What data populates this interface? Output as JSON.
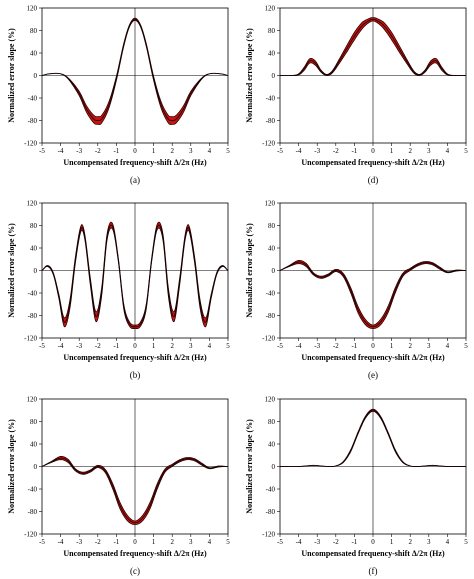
{
  "chart_data": [
    {
      "panel_label": "(a)",
      "type": "line",
      "xlabel": "Uncompensated frequency-shift Δ/2π (Hz)",
      "ylabel": "Normalized error slope (%)",
      "xlim": [
        -5,
        5
      ],
      "ylim": [
        -120,
        120
      ],
      "xticks": [
        "-5",
        "-4",
        "-3",
        "-2",
        "-1",
        "0",
        "1",
        "2",
        "3",
        "4",
        "5"
      ],
      "yticks": [
        "120",
        "80",
        "40",
        "0",
        "-40",
        "-80",
        "-120"
      ],
      "series": [
        {
          "x": [
            -5,
            -4.6,
            -4,
            -3.6,
            -3,
            -2.6,
            -2.2,
            -2,
            -1.8,
            -1.4,
            -1,
            -0.6,
            -0.3,
            0,
            0.3,
            0.6,
            1,
            1.4,
            1.8,
            2,
            2.2,
            2.6,
            3,
            3.6,
            4,
            4.6,
            5
          ],
          "y": [
            0,
            3,
            3,
            -5,
            -32,
            -60,
            -78,
            -80,
            -78,
            -52,
            -5,
            55,
            88,
            100,
            88,
            55,
            -5,
            -52,
            -78,
            -80,
            -78,
            -60,
            -32,
            -5,
            3,
            3,
            0
          ]
        }
      ],
      "band_width": [
        0,
        0,
        0,
        1,
        4,
        6,
        7,
        7,
        7,
        6,
        4,
        3,
        2,
        2,
        2,
        3,
        4,
        6,
        7,
        7,
        7,
        6,
        4,
        1,
        0,
        0,
        0
      ]
    },
    {
      "panel_label": "(d)",
      "type": "line",
      "xlabel": "Uncompensated frequency-shift Δ/2π (Hz)",
      "ylabel": "Normalized error slope (%)",
      "xlim": [
        -5,
        5
      ],
      "ylim": [
        -120,
        120
      ],
      "xticks": [
        "-5",
        "-4",
        "-3",
        "-2",
        "-1",
        "0",
        "1",
        "2",
        "3",
        "4",
        "5"
      ],
      "yticks": [
        "120",
        "80",
        "40",
        "0",
        "-40",
        "-80",
        "-120"
      ],
      "series": [
        {
          "x": [
            -5,
            -4.4,
            -4,
            -3.7,
            -3.4,
            -3.1,
            -2.8,
            -2.5,
            -2.2,
            -1.8,
            -1.4,
            -1,
            -0.6,
            -0.3,
            0,
            0.3,
            0.6,
            1,
            1.4,
            1.8,
            2.2,
            2.5,
            2.8,
            3.1,
            3.4,
            3.7,
            4,
            4.4,
            5
          ],
          "y": [
            0,
            0,
            2,
            12,
            26,
            22,
            8,
            1,
            6,
            26,
            48,
            70,
            88,
            96,
            100,
            96,
            88,
            70,
            48,
            26,
            6,
            1,
            8,
            22,
            26,
            12,
            2,
            0,
            0
          ]
        }
      ],
      "band_width": [
        0,
        0,
        1,
        3,
        4,
        4,
        2,
        1,
        2,
        4,
        6,
        7,
        6,
        4,
        3,
        4,
        6,
        7,
        6,
        4,
        2,
        1,
        2,
        4,
        4,
        3,
        1,
        0,
        0
      ]
    },
    {
      "panel_label": "(b)",
      "type": "line",
      "xlabel": "Uncompensated frequency-shift Δ/2π (Hz)",
      "ylabel": "Normalized error slope (%)",
      "xlim": [
        -5,
        5
      ],
      "ylim": [
        -120,
        120
      ],
      "xticks": [
        "-5",
        "-4",
        "-3",
        "-2",
        "-1",
        "0",
        "1",
        "2",
        "3",
        "4",
        "5"
      ],
      "yticks": [
        "120",
        "80",
        "40",
        "0",
        "-40",
        "-80",
        "-120"
      ],
      "series": [
        {
          "x": [
            -5,
            -4.7,
            -4.4,
            -4.1,
            -3.8,
            -3.5,
            -3.2,
            -2.9,
            -2.7,
            -2.4,
            -2.1,
            -1.8,
            -1.5,
            -1.2,
            -0.9,
            -0.6,
            -0.3,
            0,
            0.3,
            0.6,
            0.9,
            1.2,
            1.5,
            1.8,
            2.1,
            2.4,
            2.7,
            2.9,
            3.2,
            3.5,
            3.8,
            4.1,
            4.4,
            4.7,
            5
          ],
          "y": [
            0,
            8,
            -5,
            -45,
            -92,
            -60,
            20,
            75,
            60,
            -20,
            -82,
            -40,
            60,
            78,
            20,
            -65,
            -95,
            -100,
            -95,
            -65,
            20,
            78,
            60,
            -40,
            -82,
            -20,
            60,
            75,
            20,
            -60,
            -92,
            -45,
            -5,
            8,
            0
          ]
        }
      ],
      "band_width": [
        0,
        1,
        2,
        4,
        8,
        8,
        6,
        5,
        5,
        7,
        9,
        8,
        6,
        5,
        4,
        5,
        4,
        3,
        4,
        5,
        4,
        5,
        6,
        8,
        9,
        7,
        5,
        5,
        6,
        8,
        8,
        4,
        2,
        1,
        0
      ]
    },
    {
      "panel_label": "(e)",
      "type": "line",
      "xlabel": "Uncompensated frequency-shift Δ/2π (Hz)",
      "ylabel": "Normalized error slope (%)",
      "xlim": [
        -5,
        5
      ],
      "ylim": [
        -120,
        120
      ],
      "xticks": [
        "-5",
        "-4",
        "-3",
        "-2",
        "-1",
        "0",
        "1",
        "2",
        "3",
        "4",
        "5"
      ],
      "yticks": [
        "120",
        "80",
        "40",
        "0",
        "-40",
        "-80",
        "-120"
      ],
      "series": [
        {
          "x": [
            -5,
            -4.5,
            -4,
            -3.6,
            -3.2,
            -2.8,
            -2.4,
            -2,
            -1.6,
            -1.2,
            -0.8,
            -0.4,
            0,
            0.4,
            0.8,
            1.2,
            1.6,
            2,
            2.4,
            2.8,
            3.2,
            3.6,
            4,
            4.5,
            5
          ],
          "y": [
            0,
            8,
            15,
            10,
            -6,
            -12,
            -8,
            0,
            -8,
            -35,
            -70,
            -92,
            -100,
            -92,
            -70,
            -35,
            -8,
            2,
            10,
            14,
            12,
            4,
            -3,
            0,
            0
          ]
        }
      ],
      "band_width": [
        0,
        1,
        3,
        3,
        2,
        2,
        2,
        2,
        3,
        5,
        6,
        5,
        3,
        5,
        6,
        5,
        3,
        2,
        2,
        2,
        2,
        2,
        1,
        1,
        0
      ]
    },
    {
      "panel_label": "(c)",
      "type": "line",
      "xlabel": "Uncompensated frequency-shift Δ/2π (Hz)",
      "ylabel": "Normalized error slope (%)",
      "xlim": [
        -5,
        5
      ],
      "ylim": [
        -120,
        120
      ],
      "xticks": [
        "-5",
        "-4",
        "-3",
        "-2",
        "-1",
        "0",
        "1",
        "2",
        "3",
        "4",
        "5"
      ],
      "yticks": [
        "120",
        "80",
        "40",
        "0",
        "-40",
        "-80",
        "-120"
      ],
      "series": [
        {
          "x": [
            -5,
            -4.5,
            -4,
            -3.6,
            -3.2,
            -2.8,
            -2.4,
            -2,
            -1.6,
            -1.2,
            -0.8,
            -0.4,
            0,
            0.4,
            0.8,
            1.2,
            1.6,
            2,
            2.4,
            2.8,
            3.2,
            3.6,
            4,
            4.5,
            5
          ],
          "y": [
            0,
            8,
            15,
            10,
            -6,
            -12,
            -8,
            0,
            -8,
            -35,
            -70,
            -92,
            -100,
            -92,
            -70,
            -35,
            -8,
            2,
            10,
            14,
            12,
            4,
            -3,
            0,
            0
          ]
        }
      ],
      "band_width": [
        0,
        1,
        3,
        3,
        2,
        2,
        2,
        2,
        3,
        5,
        6,
        5,
        3,
        5,
        6,
        5,
        3,
        2,
        2,
        2,
        2,
        2,
        1,
        1,
        0
      ]
    },
    {
      "panel_label": "(f)",
      "type": "line",
      "xlabel": "Uncompensated frequency-shift Δ/2π (Hz)",
      "ylabel": "Normalized error slope (%)",
      "xlim": [
        -5,
        5
      ],
      "ylim": [
        -120,
        120
      ],
      "xticks": [
        "-5",
        "-4",
        "-3",
        "-2",
        "-1",
        "0",
        "1",
        "2",
        "3",
        "4",
        "5"
      ],
      "yticks": [
        "120",
        "80",
        "40",
        "0",
        "-40",
        "-80",
        "-120"
      ],
      "series": [
        {
          "x": [
            -5,
            -4,
            -3.6,
            -3.2,
            -2.8,
            -2.4,
            -2,
            -1.6,
            -1.2,
            -0.8,
            -0.4,
            0,
            0.4,
            0.8,
            1.2,
            1.6,
            2,
            2.4,
            2.8,
            3.2,
            3.6,
            4,
            5
          ],
          "y": [
            0,
            0,
            1,
            2,
            1,
            0,
            1,
            8,
            28,
            60,
            88,
            100,
            88,
            60,
            28,
            8,
            1,
            0,
            1,
            2,
            1,
            0,
            0
          ]
        }
      ],
      "band_width": [
        0,
        0,
        0,
        0,
        0,
        0,
        0,
        1,
        2,
        2,
        2,
        2,
        2,
        2,
        2,
        1,
        0,
        0,
        0,
        0,
        0,
        0,
        0
      ]
    }
  ],
  "colors": {
    "band": "#cc1111",
    "band_edge": "#1a0000",
    "axis": "#000000"
  }
}
